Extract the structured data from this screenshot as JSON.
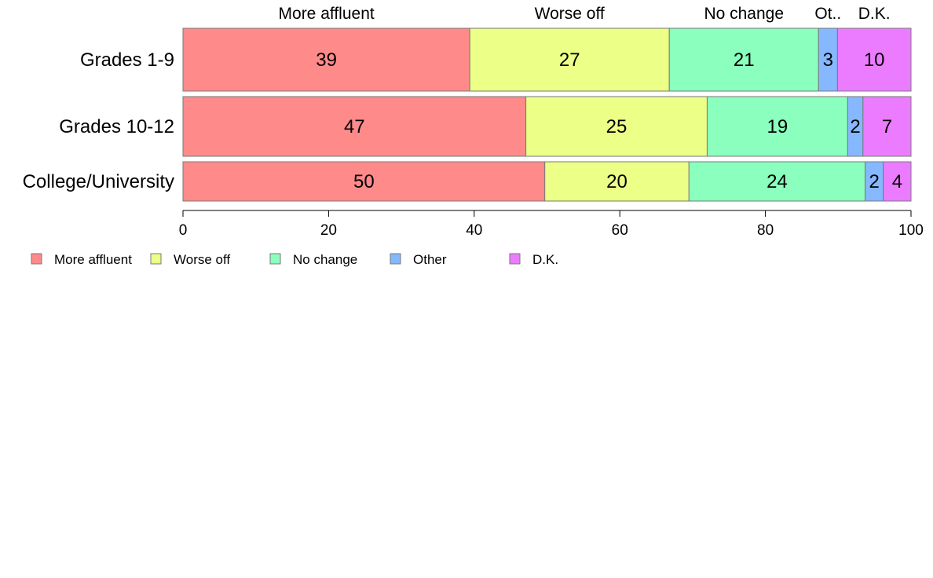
{
  "chart_data": {
    "type": "bar",
    "orientation": "horizontal",
    "stacked": true,
    "categories": [
      "Grades 1-9",
      "Grades 10-12",
      "College/University"
    ],
    "series": [
      {
        "name": "More affluent",
        "top_label": "More affluent",
        "color": "#ff8a8a",
        "values": [
          39.4,
          47.1,
          49.7
        ]
      },
      {
        "name": "Worse off",
        "top_label": "Worse off",
        "color": "#ecff86",
        "values": [
          27.4,
          24.9,
          19.8
        ]
      },
      {
        "name": "No change",
        "top_label": "No change",
        "color": "#8affbe",
        "values": [
          20.5,
          19.3,
          24.2
        ]
      },
      {
        "name": "Other",
        "top_label": "Ot..",
        "color": "#86b8ff",
        "values": [
          2.6,
          2.1,
          2.5
        ]
      },
      {
        "name": "D.K.",
        "top_label": "D.K.",
        "color": "#ec7cff",
        "values": [
          10.1,
          6.6,
          3.8
        ]
      }
    ],
    "value_labels": [
      [
        "39",
        "27",
        "21",
        "3",
        "10"
      ],
      [
        "47",
        "25",
        "19",
        "2",
        "7"
      ],
      [
        "50",
        "20",
        "24",
        "2",
        "4"
      ]
    ],
    "xlim": [
      0,
      100
    ],
    "xticks": [
      0,
      20,
      40,
      60,
      80,
      100
    ],
    "grid": false,
    "legend_position": "bottom-left"
  }
}
